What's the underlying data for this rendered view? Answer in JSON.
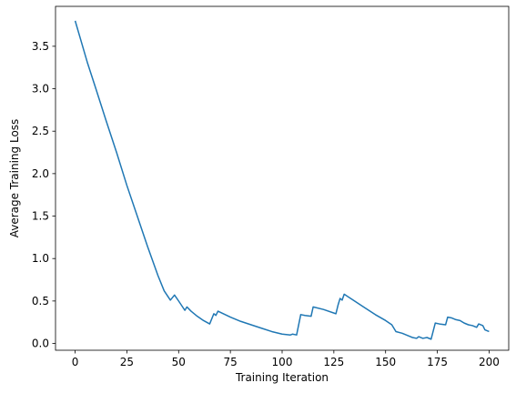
{
  "chart_data": {
    "type": "line",
    "xlabel": "Training Iteration",
    "ylabel": "Average Training Loss",
    "xlim": [
      -9.5,
      209.5
    ],
    "ylim": [
      -0.08,
      3.97
    ],
    "x_ticks": [
      0,
      25,
      50,
      75,
      100,
      125,
      150,
      175,
      200
    ],
    "y_ticks": [
      0.0,
      0.5,
      1.0,
      1.5,
      2.0,
      2.5,
      3.0,
      3.5
    ],
    "x_tick_labels": [
      "0",
      "25",
      "50",
      "75",
      "100",
      "125",
      "150",
      "175",
      "200"
    ],
    "y_tick_labels": [
      "0.0",
      "0.5",
      "1.0",
      "1.5",
      "2.0",
      "2.5",
      "3.0",
      "3.5"
    ],
    "grid": false,
    "series": [
      {
        "color": "#1f77b4",
        "x": [
          0,
          3,
          6,
          10,
          15,
          20,
          25,
          30,
          35,
          40,
          43,
          46,
          48,
          50,
          53,
          54,
          56,
          59,
          62,
          65,
          67,
          68,
          69,
          75,
          80,
          85,
          90,
          95,
          100,
          104,
          105,
          107,
          109,
          111,
          114,
          115,
          120,
          126,
          127,
          128,
          129,
          130,
          135,
          140,
          145,
          150,
          153,
          155,
          158,
          160,
          162,
          163,
          165,
          166,
          168,
          170,
          172,
          174,
          176,
          179,
          180,
          182,
          184,
          186,
          188,
          190,
          192,
          194,
          195,
          197,
          198,
          200
        ],
        "y": [
          3.8,
          3.55,
          3.3,
          3.0,
          2.62,
          2.25,
          1.86,
          1.5,
          1.14,
          0.8,
          0.62,
          0.51,
          0.57,
          0.5,
          0.39,
          0.43,
          0.38,
          0.32,
          0.27,
          0.23,
          0.35,
          0.33,
          0.38,
          0.31,
          0.26,
          0.22,
          0.18,
          0.14,
          0.11,
          0.1,
          0.11,
          0.1,
          0.34,
          0.33,
          0.32,
          0.43,
          0.4,
          0.35,
          0.45,
          0.53,
          0.51,
          0.58,
          0.5,
          0.42,
          0.34,
          0.27,
          0.22,
          0.14,
          0.12,
          0.1,
          0.08,
          0.07,
          0.06,
          0.08,
          0.06,
          0.07,
          0.05,
          0.24,
          0.23,
          0.22,
          0.31,
          0.3,
          0.28,
          0.27,
          0.24,
          0.22,
          0.21,
          0.19,
          0.23,
          0.21,
          0.16,
          0.14
        ]
      }
    ]
  }
}
